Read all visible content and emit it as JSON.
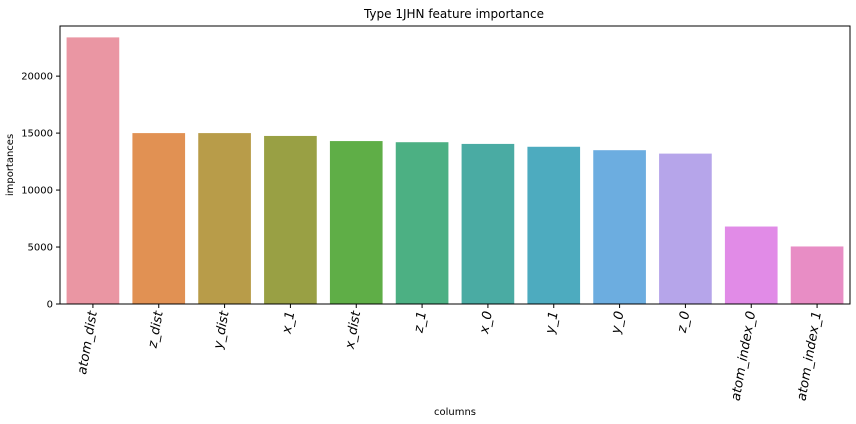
{
  "chart_data": {
    "type": "bar",
    "title": "Type 1JHN feature importance",
    "xlabel": "columns",
    "ylabel": "importances",
    "categories": [
      "atom_dist",
      "z_dist",
      "y_dist",
      "x_1",
      "x_dist",
      "z_1",
      "x_0",
      "y_1",
      "y_0",
      "z_0",
      "atom_index_0",
      "atom_index_1"
    ],
    "values": [
      23400,
      15000,
      15000,
      14750,
      14300,
      14200,
      14050,
      13800,
      13500,
      13200,
      6800,
      5050
    ],
    "colors": [
      "#ea96a3",
      "#e19153",
      "#b89c49",
      "#99a044",
      "#5fae47",
      "#4cb083",
      "#4aaba3",
      "#4dabbf",
      "#6cade0",
      "#b6a5ea",
      "#e18be7",
      "#e88dc5"
    ],
    "ylim": [
      0,
      24400
    ],
    "yticks": [
      0,
      5000,
      10000,
      15000,
      20000
    ],
    "grid": false,
    "legend": "none"
  }
}
